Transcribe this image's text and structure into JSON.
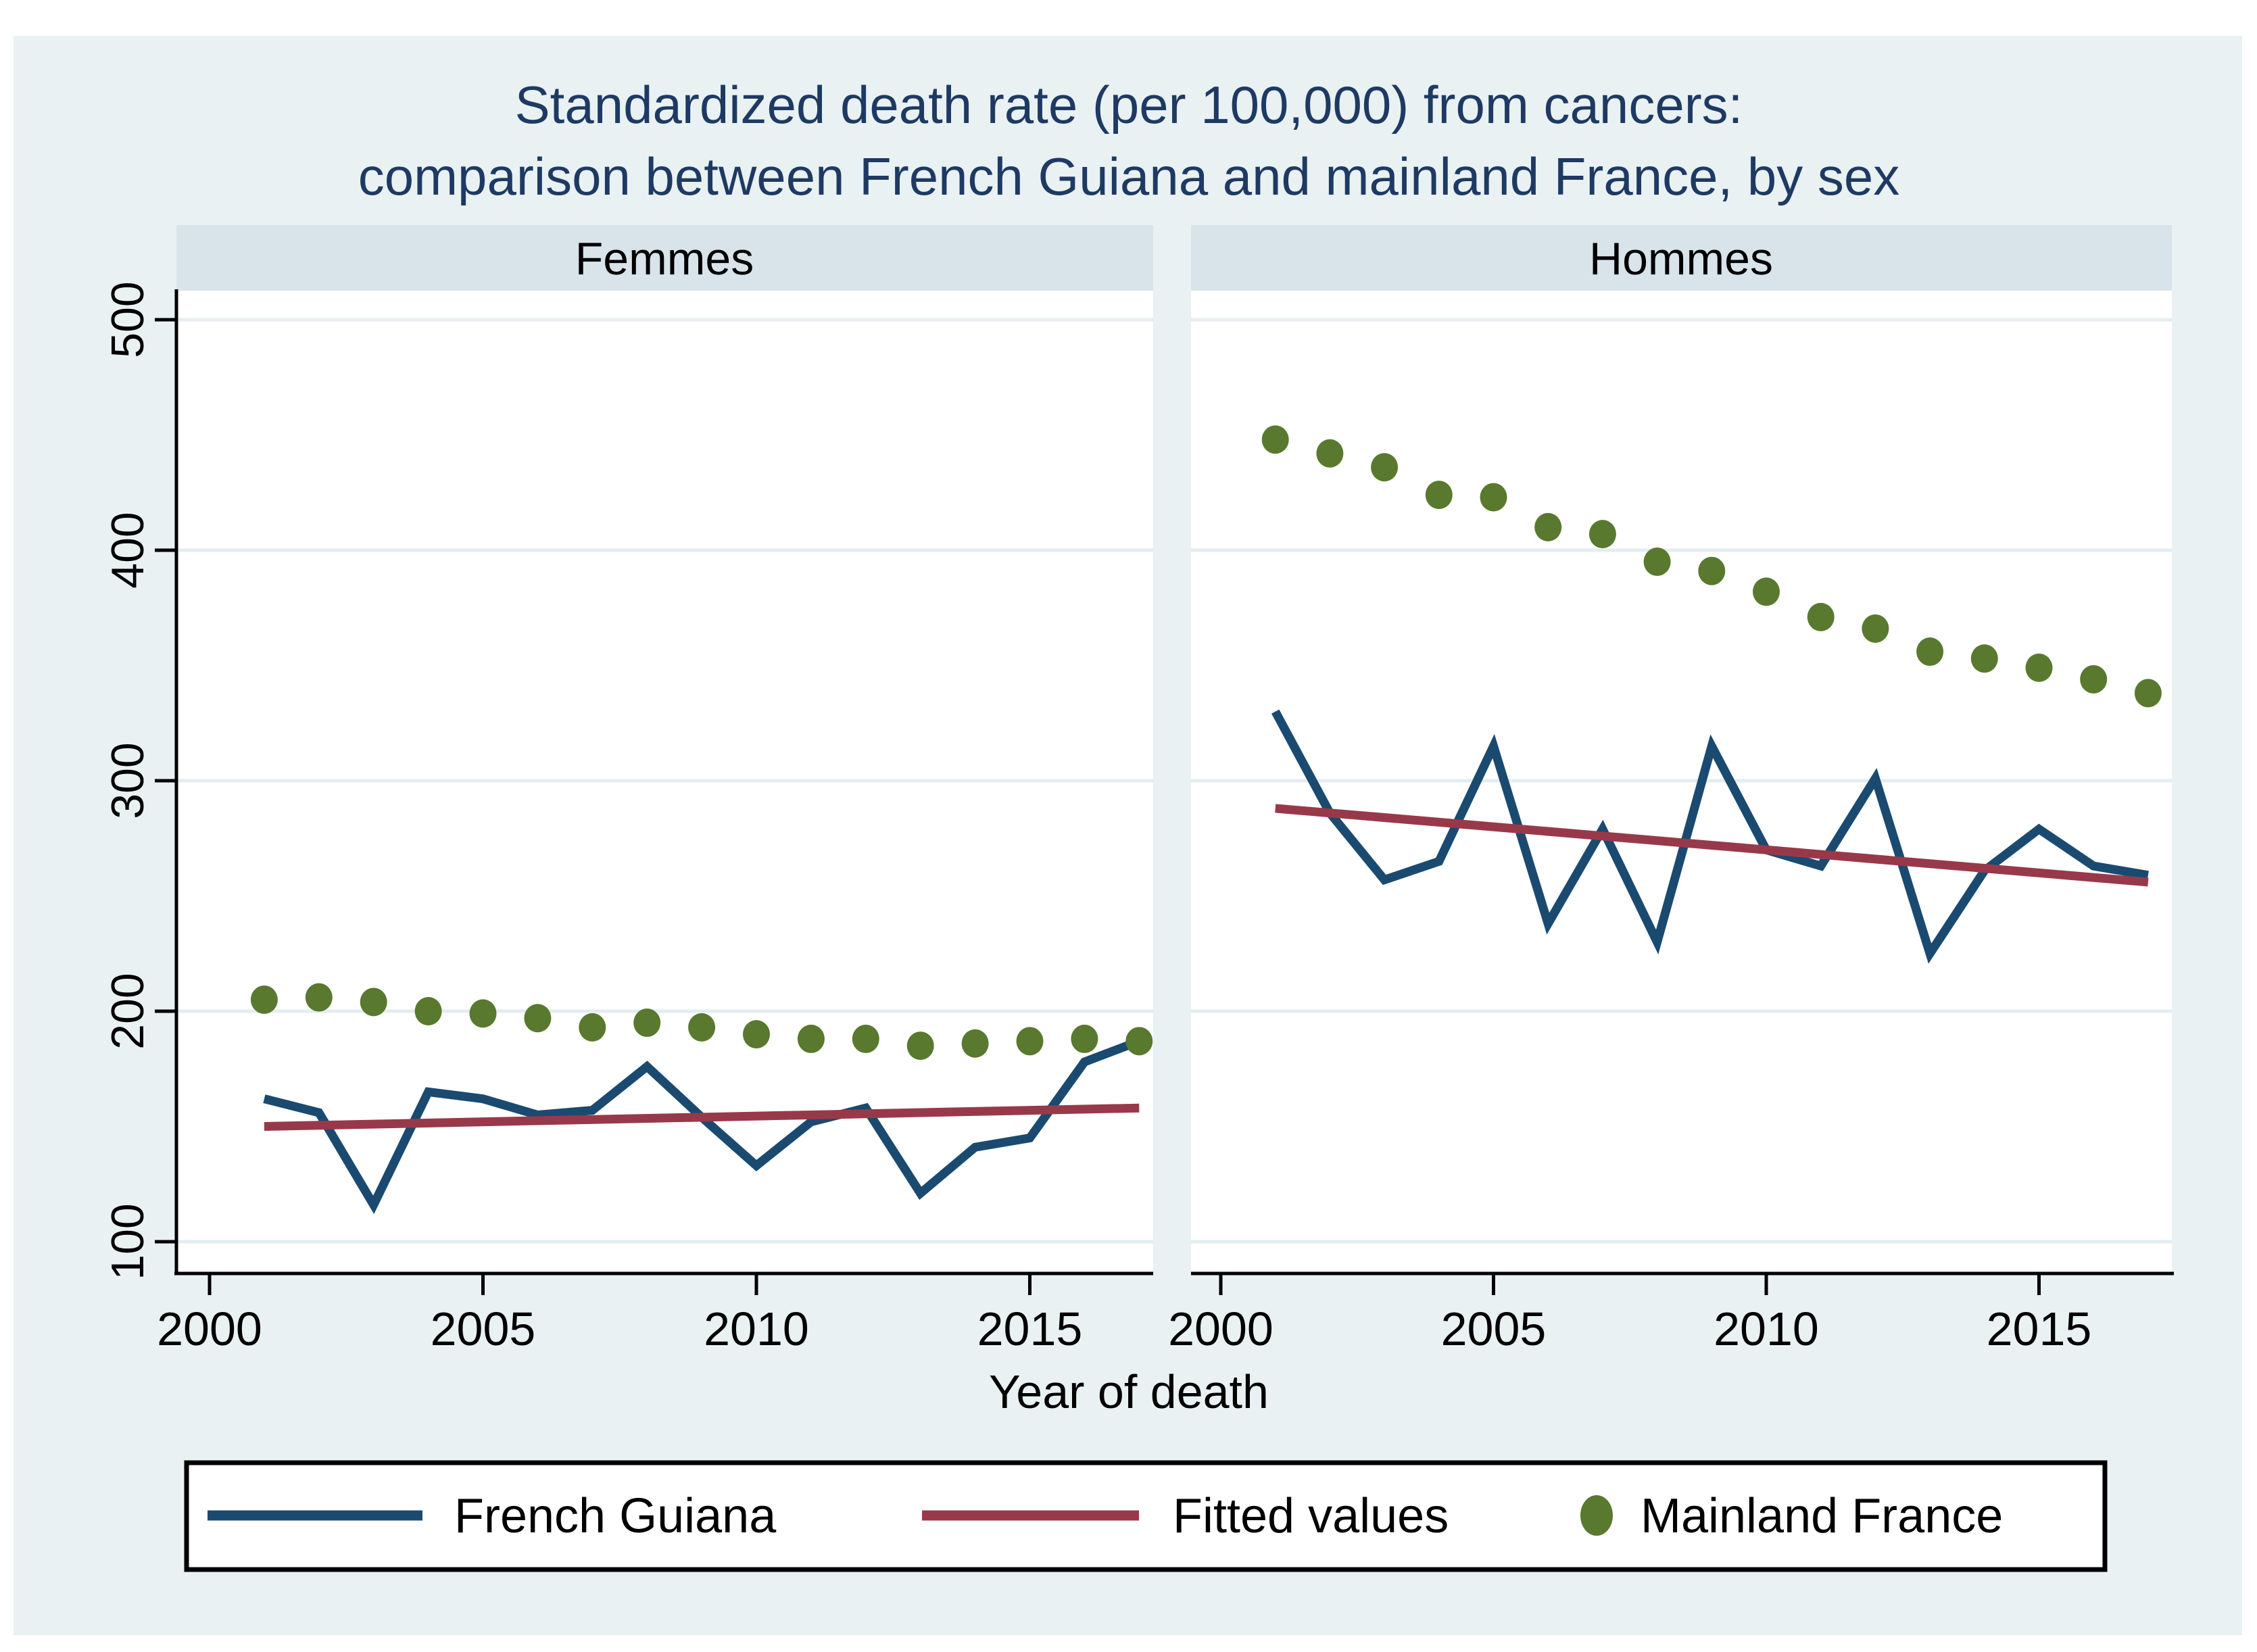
{
  "title": {
    "line1": "Standardized death rate (per 100,000) from cancers:",
    "line2": "comparison between French Guiana and mainland France, by sex"
  },
  "axes": {
    "x_label": "Year of death",
    "y_tick_labels": [
      "100",
      "200",
      "300",
      "400",
      "500"
    ],
    "x_tick_labels": [
      "2000",
      "2005",
      "2010",
      "2015"
    ]
  },
  "legend": {
    "items": [
      {
        "label": "French Guiana",
        "marker": "line",
        "color": "#1b4a70"
      },
      {
        "label": "Fitted values",
        "marker": "line",
        "color": "#98394a"
      },
      {
        "label": "Mainland France",
        "marker": "dot",
        "color": "#58792e"
      }
    ]
  },
  "colors": {
    "canvas_background": "#e9f1f3",
    "plot_background": "#ffffff",
    "panel_header_band": "#d8e3ea",
    "gridline": "#e3edf1",
    "axis": "#000000",
    "french_guiana_line": "#1b4a70",
    "fitted_line": "#98394a",
    "mainland_dot": "#58792e",
    "title_text": "#1e3a63"
  },
  "chart_data": {
    "type": "line",
    "xlabel": "Year of death",
    "ylim": [
      100,
      500
    ],
    "y_ticks": [
      100,
      200,
      300,
      400,
      500
    ],
    "x_ticks": [
      2000,
      2005,
      2010,
      2015
    ],
    "x": [
      2001,
      2002,
      2003,
      2004,
      2005,
      2006,
      2007,
      2008,
      2009,
      2010,
      2011,
      2012,
      2013,
      2014,
      2015,
      2016,
      2017
    ],
    "grid": true,
    "legend_position": "bottom",
    "panels": [
      {
        "name": "Femmes",
        "series": [
          {
            "name": "French Guiana",
            "type": "line",
            "values": [
              162,
              156,
              116,
              165,
              162,
              155,
              157,
              176,
              154,
              133,
              152,
              158,
              121,
              141,
              145,
              178,
              187
            ]
          },
          {
            "name": "Fitted values",
            "type": "line",
            "x": [
              2001,
              2017
            ],
            "values": [
              150,
              158
            ]
          },
          {
            "name": "Mainland France",
            "type": "scatter",
            "values": [
              205,
              206,
              204,
              200,
              199,
              197,
              193,
              195,
              193,
              190,
              188,
              188,
              185,
              186,
              187,
              188,
              187
            ]
          }
        ]
      },
      {
        "name": "Hommes",
        "series": [
          {
            "name": "French Guiana",
            "type": "line",
            "values": [
              330,
              286,
              257,
              265,
              315,
              238,
              279,
              230,
              315,
              270,
              263,
              301,
              225,
              261,
              279,
              263,
              259
            ]
          },
          {
            "name": "Fitted values",
            "type": "line",
            "x": [
              2001,
              2017
            ],
            "values": [
              288,
              256
            ]
          },
          {
            "name": "Mainland France",
            "type": "scatter",
            "values": [
              448,
              442,
              436,
              424,
              423,
              410,
              407,
              395,
              391,
              382,
              371,
              366,
              356,
              353,
              349,
              344,
              338
            ]
          }
        ]
      }
    ]
  }
}
